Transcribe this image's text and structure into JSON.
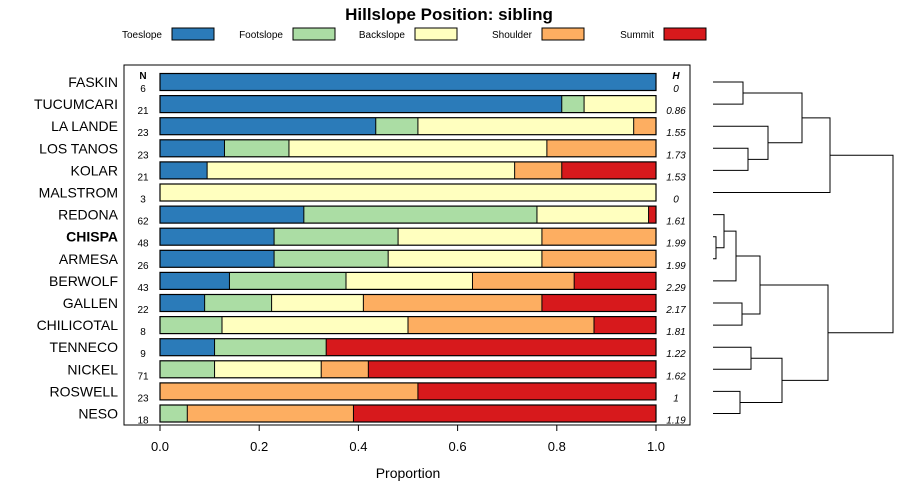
{
  "chart_data": {
    "type": "bar",
    "orientation": "horizontal",
    "stacked": true,
    "title": "Hillslope Position: sibling",
    "xlabel": "Proportion",
    "xlim": [
      0,
      1
    ],
    "xticks": [
      "0.0",
      "0.2",
      "0.4",
      "0.6",
      "0.8",
      "1.0"
    ],
    "n_header": "N",
    "h_header": "H",
    "legend": [
      {
        "name": "Toeslope",
        "color": "#2B7BB9"
      },
      {
        "name": "Footslope",
        "color": "#ABDDA4"
      },
      {
        "name": "Backslope",
        "color": "#FFFFBF"
      },
      {
        "name": "Shoulder",
        "color": "#FDAE61"
      },
      {
        "name": "Summit",
        "color": "#D7191C"
      }
    ],
    "categories": [
      "FASKIN",
      "TUCUMCARI",
      "LA LANDE",
      "LOS TANOS",
      "KOLAR",
      "MALSTROM",
      "REDONA",
      "CHISPA",
      "ARMESA",
      "BERWOLF",
      "GALLEN",
      "CHILICOTAL",
      "TENNECO",
      "NICKEL",
      "ROSWELL",
      "NESO"
    ],
    "highlight": "CHISPA",
    "n": [
      "6",
      "21",
      "23",
      "23",
      "21",
      "3",
      "62",
      "48",
      "26",
      "43",
      "22",
      "8",
      "9",
      "71",
      "23",
      "18"
    ],
    "h": [
      "0",
      "0.86",
      "1.55",
      "1.73",
      "1.53",
      "0",
      "1.61",
      "1.99",
      "1.99",
      "2.29",
      "2.17",
      "1.81",
      "1.22",
      "1.62",
      "1",
      "1.19"
    ],
    "series": [
      {
        "name": "Toeslope",
        "values": [
          1.0,
          0.81,
          0.435,
          0.13,
          0.095,
          0,
          0.29,
          0.23,
          0.23,
          0.14,
          0.09,
          0,
          0.11,
          0,
          0,
          0
        ]
      },
      {
        "name": "Footslope",
        "values": [
          0,
          0.045,
          0.085,
          0.13,
          0,
          0,
          0.47,
          0.25,
          0.23,
          0.235,
          0.135,
          0.125,
          0.225,
          0.11,
          0,
          0.055
        ]
      },
      {
        "name": "Backslope",
        "values": [
          0,
          0.145,
          0.435,
          0.52,
          0.62,
          1.0,
          0.225,
          0.29,
          0.31,
          0.255,
          0.185,
          0.375,
          0,
          0.215,
          0,
          0
        ]
      },
      {
        "name": "Shoulder",
        "values": [
          0,
          0,
          0.045,
          0.22,
          0.095,
          0,
          0,
          0.23,
          0.23,
          0.205,
          0.36,
          0.375,
          0,
          0.095,
          0.52,
          0.335
        ]
      },
      {
        "name": "Summit",
        "values": [
          0,
          0,
          0,
          0,
          0.19,
          0,
          0.015,
          0,
          0,
          0.165,
          0.23,
          0.125,
          0.665,
          0.58,
          0.48,
          0.61
        ]
      }
    ]
  }
}
